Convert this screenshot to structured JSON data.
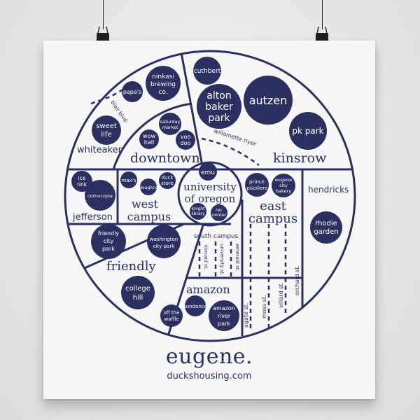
{
  "poster": {
    "title": "eugene.",
    "url": "duckshousing.com"
  },
  "regions": {
    "whiteaker": "whiteaker",
    "downtown": "downtown",
    "kinsrow": "kinsrow",
    "jefferson": "jefferson",
    "west_campus_1": "west",
    "west_campus_2": "campus",
    "uo_1": "university",
    "uo_2": "of oregon",
    "east_campus_1": "east",
    "east_campus_2": "campus",
    "hendricks": "hendricks",
    "friendly": "friendly",
    "amazon": "amazon",
    "south_campus": "south campus"
  },
  "places": {
    "ninkasi_1": "ninkasi",
    "ninkasi_2": "brewing",
    "ninkasi_3": "co.",
    "papas": "papa's",
    "cuthbert": "cuthbert",
    "alton_1": "alton",
    "alton_2": "baker",
    "alton_3": "park",
    "autzen": "autzen",
    "pk_park": "pk park",
    "sweet_1": "sweet",
    "sweet_2": "life",
    "saturday_1": "saturday",
    "saturday_2": "market",
    "wow_1": "wow",
    "wow_2": "hall",
    "voodoo_1": "voo",
    "voodoo_2": "doo",
    "ice_1": "ice",
    "ice_2": "rink",
    "cornucopia": "cornucopia",
    "maxs": "max's",
    "doughco": "doughco",
    "duck_1": "duck",
    "duck_2": "store",
    "emu": "emu",
    "knight_1": "knight",
    "knight_2": "library",
    "rec_1": "rec",
    "rec_2": "center",
    "prince_1": "prince",
    "prince_2": "pücklers",
    "ecb_1": "eugene",
    "ecb_2": "city",
    "ecb_3": "bakery",
    "rhodie_1": "rhodie",
    "rhodie_2": "garden",
    "fcp_1": "friendly",
    "fcp_2": "city",
    "fcp_3": "park",
    "wcp_1": "washington",
    "wcp_2": "city park",
    "ch_1": "college",
    "ch_2": "hill",
    "otw_1": "off the",
    "otw_2": "waffle",
    "sundance": "sundance",
    "arp_1": "amazon",
    "arp_2": "river",
    "arp_3": "park"
  },
  "streets": {
    "blair": "blair blvd.",
    "willamette": "willamette river",
    "kincaid": "kincaid st.",
    "university": "university st.",
    "emerald": "emerald st.",
    "agate": "agate st.",
    "moss": "moss st.",
    "villard": "villard st.",
    "orchard": "orchard st."
  },
  "colors": {
    "ink": "#2b3060",
    "paper": "#f7f7f7",
    "wall": "#e9e9e9"
  }
}
